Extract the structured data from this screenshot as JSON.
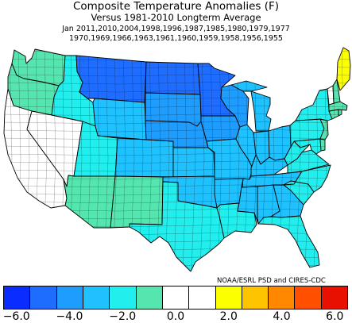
{
  "title": {
    "line1": "Composite Temperature Anomalies (F)",
    "line2": "Versus 1981-2010 Longterm Average",
    "line3": "Jan  2011,2010,2004,1998,1996,1987,1985,1980,1979,1977",
    "line4": "1970,1969,1966,1963,1961,1960,1959,1958,1956,1955"
  },
  "credit": "NOAA/ESRL PSD and CIRES-CDC",
  "colors": {
    "bins": [
      "#0a2cff",
      "#1f6dff",
      "#1e9dff",
      "#1fc2ff",
      "#22eeee",
      "#55e6b0",
      "#ffffff",
      "#ffffff",
      "#fbff00",
      "#ffc400",
      "#ff8800",
      "#ff5000",
      "#e81000"
    ],
    "state_lines": "#000000",
    "division_lines": "#0a0a0a"
  },
  "colorbar": {
    "tick_labels": [
      {
        "value": -6.0,
        "label": "−6.0"
      },
      {
        "value": -4.0,
        "label": "−4.0"
      },
      {
        "value": -2.0,
        "label": "−2.0"
      },
      {
        "value": 0.0,
        "label": "0.0"
      },
      {
        "value": 2.0,
        "label": "2.0"
      },
      {
        "value": 4.0,
        "label": "4.0"
      },
      {
        "value": 6.0,
        "label": "6.0"
      }
    ]
  },
  "map_regions": [
    {
      "region": "Washington",
      "bin": 5
    },
    {
      "region": "Oregon",
      "bin": 5
    },
    {
      "region": "California",
      "bin": 6
    },
    {
      "region": "Nevada",
      "bin": 6
    },
    {
      "region": "Idaho",
      "bin": 4
    },
    {
      "region": "Montana",
      "bin": 1
    },
    {
      "region": "Wyoming",
      "bin": 3
    },
    {
      "region": "Utah",
      "bin": 4
    },
    {
      "region": "Colorado",
      "bin": 3
    },
    {
      "region": "Arizona",
      "bin": 5
    },
    {
      "region": "New Mexico",
      "bin": 5
    },
    {
      "region": "North Dakota",
      "bin": 1
    },
    {
      "region": "South Dakota",
      "bin": 2
    },
    {
      "region": "Nebraska",
      "bin": 2
    },
    {
      "region": "Kansas",
      "bin": 3
    },
    {
      "region": "Oklahoma",
      "bin": 3
    },
    {
      "region": "Texas",
      "bin": 4
    },
    {
      "region": "Minnesota",
      "bin": 1
    },
    {
      "region": "Iowa",
      "bin": 2
    },
    {
      "region": "Missouri",
      "bin": 3
    },
    {
      "region": "Arkansas",
      "bin": 3
    },
    {
      "region": "Louisiana",
      "bin": 4
    },
    {
      "region": "Wisconsin",
      "bin": 2
    },
    {
      "region": "Illinois",
      "bin": 3
    },
    {
      "region": "Michigan",
      "bin": 3
    },
    {
      "region": "Indiana",
      "bin": 3
    },
    {
      "region": "Ohio",
      "bin": 3
    },
    {
      "region": "Kentucky",
      "bin": 3
    },
    {
      "region": "Tennessee",
      "bin": 3
    },
    {
      "region": "Mississippi",
      "bin": 3
    },
    {
      "region": "Alabama",
      "bin": 3
    },
    {
      "region": "Georgia",
      "bin": 3
    },
    {
      "region": "Florida",
      "bin": 4
    },
    {
      "region": "South Carolina",
      "bin": 4
    },
    {
      "region": "North Carolina",
      "bin": 4
    },
    {
      "region": "Virginia",
      "bin": 4
    },
    {
      "region": "West Virginia",
      "bin": 4
    },
    {
      "region": "Maryland",
      "bin": 4
    },
    {
      "region": "Delaware",
      "bin": 5
    },
    {
      "region": "Pennsylvania",
      "bin": 4
    },
    {
      "region": "New Jersey",
      "bin": 5
    },
    {
      "region": "New York",
      "bin": 4
    },
    {
      "region": "Connecticut",
      "bin": 5
    },
    {
      "region": "Rhode Island",
      "bin": 5
    },
    {
      "region": "Massachusetts",
      "bin": 5
    },
    {
      "region": "Vermont",
      "bin": 6
    },
    {
      "region": "New Hampshire",
      "bin": 5
    },
    {
      "region": "Maine",
      "bin": 8
    }
  ]
}
